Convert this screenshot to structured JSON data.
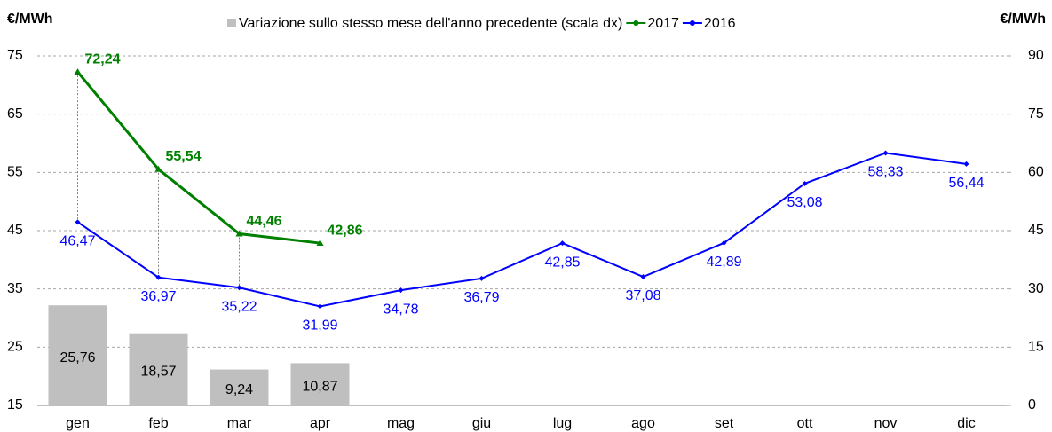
{
  "chart_data": {
    "type": "bar-line",
    "y_label": "€/MWh",
    "y2_label": "€/MWh",
    "categories": [
      "gen",
      "feb",
      "mar",
      "apr",
      "mag",
      "giu",
      "lug",
      "ago",
      "set",
      "ott",
      "nov",
      "dic"
    ],
    "ylim": [
      15,
      75
    ],
    "yticks": [
      15,
      25,
      35,
      45,
      55,
      65,
      75
    ],
    "y2lim": [
      0,
      90
    ],
    "y2ticks": [
      0,
      15,
      30,
      45,
      60,
      75,
      90
    ],
    "grid": true,
    "series": [
      {
        "name": "Variazione sullo stesso mese dell'anno precedente (scala dx)",
        "type": "bar",
        "axis": "y2",
        "color": "#bfbfbf",
        "values": [
          25.76,
          18.57,
          9.24,
          10.87,
          null,
          null,
          null,
          null,
          null,
          null,
          null,
          null
        ],
        "value_labels": [
          "25,76",
          "18,57",
          "9,24",
          "10,87",
          null,
          null,
          null,
          null,
          null,
          null,
          null,
          null
        ]
      },
      {
        "name": "2017",
        "type": "line",
        "color": "#008000",
        "values": [
          72.24,
          55.54,
          44.46,
          42.86,
          null,
          null,
          null,
          null,
          null,
          null,
          null,
          null
        ],
        "value_labels": [
          "72,24",
          "55,54",
          "44,46",
          "42,86",
          null,
          null,
          null,
          null,
          null,
          null,
          null,
          null
        ]
      },
      {
        "name": "2016",
        "type": "line",
        "color": "#0000ff",
        "values": [
          46.47,
          36.97,
          35.22,
          31.99,
          34.78,
          36.79,
          42.85,
          37.08,
          42.89,
          53.08,
          58.33,
          56.44
        ],
        "value_labels": [
          "46,47",
          "36,97",
          "35,22",
          "31,99",
          "34,78",
          "36,79",
          "42,85",
          "37,08",
          "42,89",
          "53,08",
          "58,33",
          "56,44"
        ]
      }
    ]
  }
}
